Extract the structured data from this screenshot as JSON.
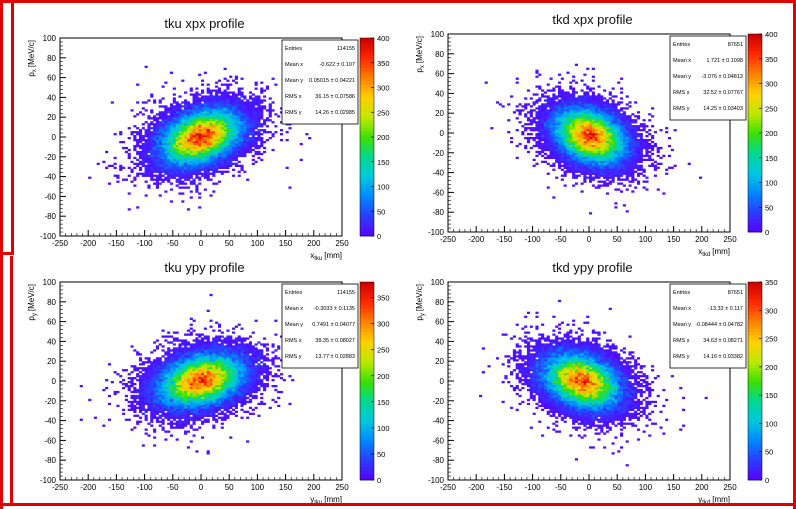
{
  "chart_data": [
    {
      "type": "heatmap",
      "title": "tku xpx profile",
      "xlabel_main": "x",
      "xlabel_sub": "tku",
      "xlabel_unit": "[mm]",
      "ylabel_main": "p",
      "ylabel_sub": "x",
      "ylabel_unit": "[MeV/c]",
      "xlim": [
        -250,
        250
      ],
      "ylim": [
        -100,
        100
      ],
      "xticks": [
        -250,
        -200,
        -150,
        -100,
        -50,
        0,
        50,
        100,
        150,
        200,
        250
      ],
      "yticks": [
        -100,
        -80,
        -60,
        -40,
        -20,
        0,
        20,
        40,
        60,
        80,
        100
      ],
      "zmax": 400,
      "zticks": [
        0,
        50,
        100,
        150,
        200,
        250,
        300,
        350,
        400
      ],
      "stats": [
        {
          "label": "Entries",
          "value": "114155"
        },
        {
          "label": "Mean x",
          "value": "-0.622 ± 0.107"
        },
        {
          "label": "Mean y",
          "value": "0.05015 ± 0.04221"
        },
        {
          "label": "RMS x",
          "value": "36.15 ± 0.07586"
        },
        {
          "label": "RMS y",
          "value": "14.26 ± 0.02985"
        }
      ],
      "distribution": {
        "mean_x": -0.622,
        "mean_y": 0.05,
        "rms_x": 36.15,
        "rms_y": 14.26,
        "tilt": 0.35,
        "entries": 114155
      }
    },
    {
      "type": "heatmap",
      "title": "tkd xpx profile",
      "xlabel_main": "x",
      "xlabel_sub": "tkd",
      "xlabel_unit": "[mm]",
      "ylabel_main": "p",
      "ylabel_sub": "x",
      "ylabel_unit": "[MeV/c]",
      "xlim": [
        -250,
        250
      ],
      "ylim": [
        -100,
        100
      ],
      "xticks": [
        -250,
        -200,
        -150,
        -100,
        -50,
        0,
        50,
        100,
        150,
        200,
        250
      ],
      "yticks": [
        -100,
        -80,
        -60,
        -40,
        -20,
        0,
        20,
        40,
        60,
        80,
        100
      ],
      "zmax": 400,
      "zticks": [
        0,
        50,
        100,
        150,
        200,
        250,
        300,
        350,
        400
      ],
      "stats": [
        {
          "label": "Entries",
          "value": "87651"
        },
        {
          "label": "Mean x",
          "value": "1.721 ± 0.1098"
        },
        {
          "label": "Mean y",
          "value": "-3.076 ± 0.04813"
        },
        {
          "label": "RMS x",
          "value": "32.52 ± 0.07767"
        },
        {
          "label": "RMS y",
          "value": "14.25 ± 0.03403"
        }
      ],
      "distribution": {
        "mean_x": 1.721,
        "mean_y": -3.076,
        "rms_x": 32.52,
        "rms_y": 14.25,
        "tilt": -0.3,
        "entries": 87651
      }
    },
    {
      "type": "heatmap",
      "title": "tku ypy profile",
      "xlabel_main": "y",
      "xlabel_sub": "tku",
      "xlabel_unit": "[mm]",
      "ylabel_main": "p",
      "ylabel_sub": "y",
      "ylabel_unit": "[MeV/c]",
      "xlim": [
        -250,
        250
      ],
      "ylim": [
        -100,
        100
      ],
      "xticks": [
        -250,
        -200,
        -150,
        -100,
        -50,
        0,
        50,
        100,
        150,
        200,
        250
      ],
      "yticks": [
        -100,
        -80,
        -60,
        -40,
        -20,
        0,
        20,
        40,
        60,
        80,
        100
      ],
      "zmax": 380,
      "zticks": [
        0,
        50,
        100,
        150,
        200,
        250,
        300,
        350
      ],
      "stats": [
        {
          "label": "Entries",
          "value": "114155"
        },
        {
          "label": "Mean x",
          "value": "-0.3033 ± 0.1135"
        },
        {
          "label": "Mean y",
          "value": "0.7491 ± 0.04077"
        },
        {
          "label": "RMS x",
          "value": "38.35 ± 0.08027"
        },
        {
          "label": "RMS y",
          "value": "13.77 ± 0.02883"
        }
      ],
      "distribution": {
        "mean_x": -0.3033,
        "mean_y": 0.7491,
        "rms_x": 38.35,
        "rms_y": 13.77,
        "tilt": 0.3,
        "entries": 114155
      }
    },
    {
      "type": "heatmap",
      "title": "tkd ypy profile",
      "xlabel_main": "y",
      "xlabel_sub": "tkd",
      "xlabel_unit": "[mm]",
      "ylabel_main": "p",
      "ylabel_sub": "y",
      "ylabel_unit": "[MeV/c]",
      "xlim": [
        -250,
        250
      ],
      "ylim": [
        -100,
        100
      ],
      "xticks": [
        -250,
        -200,
        -150,
        -100,
        -50,
        0,
        50,
        100,
        150,
        200,
        250
      ],
      "yticks": [
        -100,
        -80,
        -60,
        -40,
        -20,
        0,
        20,
        40,
        60,
        80,
        100
      ],
      "zmax": 350,
      "zticks": [
        0,
        50,
        100,
        150,
        200,
        250,
        300,
        350
      ],
      "stats": [
        {
          "label": "Entries",
          "value": "87651"
        },
        {
          "label": "Mean x",
          "value": "-13.33 ± 0.117"
        },
        {
          "label": "Mean y",
          "value": "-0.08444 ± 0.04782"
        },
        {
          "label": "RMS x",
          "value": "34.63 ± 0.08271"
        },
        {
          "label": "RMS y",
          "value": "14.16 ± 0.03382"
        }
      ],
      "distribution": {
        "mean_x": -13.33,
        "mean_y": -0.08444,
        "rms_x": 34.63,
        "rms_y": 14.16,
        "tilt": -0.3,
        "entries": 87651
      }
    }
  ],
  "colors": {
    "highlight_frame": "#e00000",
    "palette": [
      "#5a00ff",
      "#2b3cff",
      "#0088ff",
      "#00c8e0",
      "#00d890",
      "#3ee000",
      "#c0e800",
      "#ffd000",
      "#ff8000",
      "#ff2800",
      "#cc0000"
    ]
  }
}
